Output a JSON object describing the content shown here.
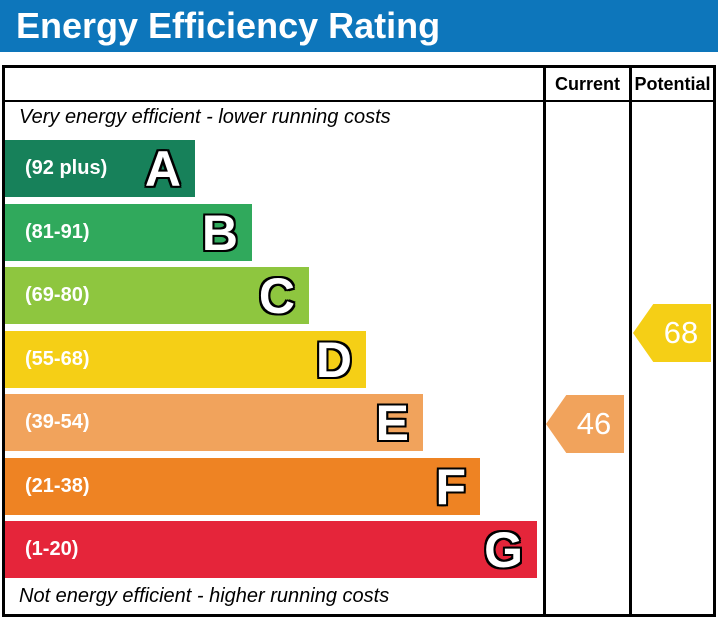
{
  "title": "Energy Efficiency Rating",
  "columns": {
    "current": "Current",
    "potential": "Potential"
  },
  "notes": {
    "top": "Very energy efficient - lower running costs",
    "bottom": "Not energy efficient - higher running costs"
  },
  "colors": {
    "header_bg": "#0d76bb",
    "border": "#000000",
    "band_text": "#ffffff"
  },
  "chart_data": {
    "type": "bar",
    "title": "Energy Efficiency Rating",
    "categories": [
      "A",
      "B",
      "C",
      "D",
      "E",
      "F",
      "G"
    ],
    "bands": [
      {
        "letter": "A",
        "range_label": "(92 plus)",
        "min": 92,
        "max": 100,
        "color": "#17815a"
      },
      {
        "letter": "B",
        "range_label": "(81-91)",
        "min": 81,
        "max": 91,
        "color": "#30a95c"
      },
      {
        "letter": "C",
        "range_label": "(69-80)",
        "min": 69,
        "max": 80,
        "color": "#8ec63f"
      },
      {
        "letter": "D",
        "range_label": "(55-68)",
        "min": 55,
        "max": 68,
        "color": "#f5cf16"
      },
      {
        "letter": "E",
        "range_label": "(39-54)",
        "min": 39,
        "max": 54,
        "color": "#f1a35c"
      },
      {
        "letter": "F",
        "range_label": "(21-38)",
        "min": 21,
        "max": 38,
        "color": "#ee8323"
      },
      {
        "letter": "G",
        "range_label": "(1-20)",
        "min": 1,
        "max": 20,
        "color": "#e5253a"
      }
    ],
    "markers": {
      "current": {
        "label": "Current",
        "value": 46,
        "band": "E",
        "color": "#f1a35c"
      },
      "potential": {
        "label": "Potential",
        "value": 68,
        "band": "D",
        "color": "#f5cf16"
      }
    },
    "legend_position": "none",
    "grid": false
  }
}
